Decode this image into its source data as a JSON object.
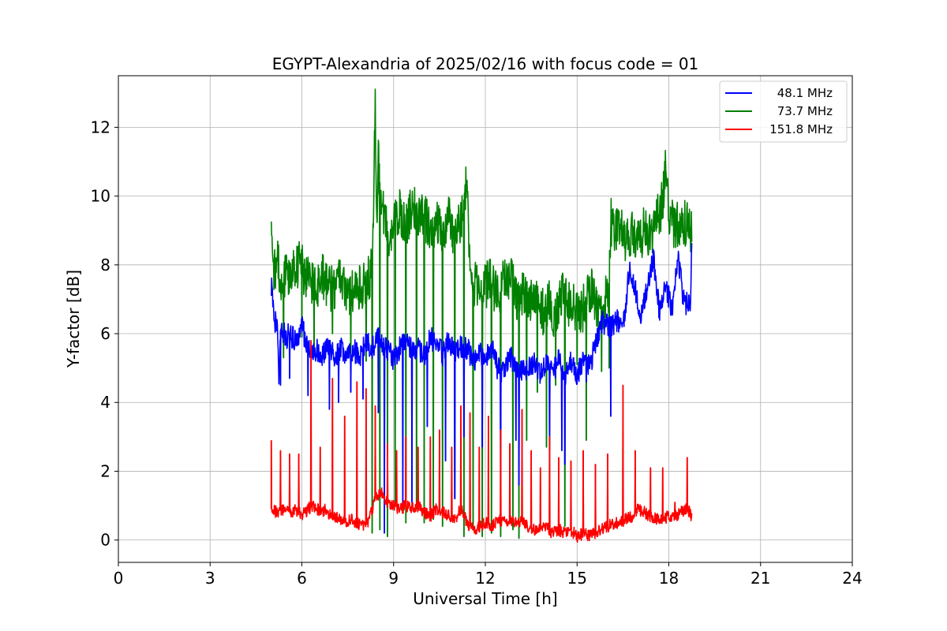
{
  "chart_data": {
    "type": "line",
    "title": "EGYPT-Alexandria of 2025/02/16 with focus code = 01",
    "xlabel": "Universal Time [h]",
    "ylabel": "Y-factor [dB]",
    "xlim": [
      0,
      24
    ],
    "ylim": [
      -0.65,
      13.5
    ],
    "xticks": [
      0,
      3,
      6,
      9,
      12,
      15,
      18,
      21,
      24
    ],
    "yticks": [
      0,
      2,
      4,
      6,
      8,
      10,
      12
    ],
    "grid": true,
    "legend_position": "top-right",
    "series": [
      {
        "name": "48.1 MHz",
        "color": "#0000ff",
        "x": [
          5.0,
          5.1,
          5.2,
          5.25,
          5.3,
          5.4,
          5.5,
          5.6,
          5.7,
          5.8,
          5.9,
          6.0,
          6.1,
          6.2,
          6.3,
          6.5,
          6.7,
          6.9,
          7.1,
          7.3,
          7.5,
          7.7,
          7.9,
          8.1,
          8.3,
          8.5,
          8.7,
          8.9,
          9.0,
          9.2,
          9.4,
          9.6,
          9.8,
          10.0,
          10.2,
          10.4,
          10.6,
          10.8,
          11.0,
          11.2,
          11.4,
          11.6,
          11.8,
          12.0,
          12.2,
          12.4,
          12.6,
          12.8,
          13.0,
          13.2,
          13.4,
          13.6,
          13.8,
          14.0,
          14.2,
          14.4,
          14.6,
          14.8,
          15.0,
          15.2,
          15.4,
          15.6,
          15.8,
          16.0,
          16.1,
          16.3,
          16.5,
          16.7,
          16.9,
          17.1,
          17.3,
          17.5,
          17.7,
          17.9,
          18.1,
          18.3,
          18.5,
          18.7,
          18.75
        ],
        "y": [
          7.4,
          6.4,
          6.2,
          4.6,
          6.1,
          6.0,
          5.9,
          6.0,
          5.9,
          5.8,
          6.0,
          6.2,
          5.9,
          5.7,
          5.6,
          5.5,
          5.4,
          5.6,
          5.3,
          5.6,
          5.3,
          5.5,
          5.4,
          5.8,
          5.6,
          5.9,
          5.6,
          5.5,
          5.2,
          5.6,
          5.8,
          5.5,
          5.6,
          5.3,
          5.9,
          5.7,
          5.4,
          5.8,
          5.5,
          5.6,
          5.6,
          5.2,
          5.4,
          5.3,
          5.6,
          5.0,
          4.9,
          5.4,
          5.0,
          4.9,
          5.0,
          5.1,
          4.8,
          5.1,
          4.9,
          5.2,
          4.8,
          5.2,
          4.7,
          5.3,
          5.0,
          5.7,
          6.3,
          6.3,
          6.2,
          6.4,
          6.1,
          7.8,
          7.3,
          6.5,
          7.3,
          8.2,
          6.6,
          7.4,
          6.7,
          8.2,
          6.9,
          6.8,
          8.3
        ]
      },
      {
        "name": "73.7 MHz",
        "color": "#008000",
        "x": [
          5.0,
          5.05,
          5.1,
          5.2,
          5.3,
          5.4,
          5.5,
          5.7,
          5.9,
          6.1,
          6.3,
          6.5,
          6.7,
          6.9,
          7.1,
          7.3,
          7.5,
          7.7,
          7.9,
          8.1,
          8.3,
          8.4,
          8.45,
          8.5,
          8.6,
          8.7,
          8.8,
          9.0,
          9.2,
          9.4,
          9.6,
          9.8,
          10.0,
          10.2,
          10.4,
          10.6,
          10.8,
          11.0,
          11.2,
          11.4,
          11.5,
          11.7,
          11.9,
          12.1,
          12.3,
          12.5,
          12.7,
          12.9,
          13.1,
          13.3,
          13.5,
          13.7,
          13.9,
          14.1,
          14.3,
          14.5,
          14.7,
          14.9,
          15.1,
          15.3,
          15.5,
          15.7,
          15.9,
          16.05,
          16.1,
          16.2,
          16.4,
          16.6,
          16.8,
          17.0,
          17.2,
          17.4,
          17.6,
          17.8,
          17.9,
          18.0,
          18.2,
          18.4,
          18.6,
          18.75
        ],
        "y": [
          9.6,
          8.8,
          7.7,
          8.2,
          7.6,
          7.4,
          7.9,
          7.7,
          8.0,
          7.8,
          7.6,
          7.4,
          7.7,
          7.3,
          7.4,
          7.6,
          7.1,
          7.4,
          7.3,
          7.6,
          7.8,
          12.8,
          9.0,
          11.0,
          9.8,
          9.5,
          8.8,
          9.3,
          9.6,
          9.0,
          9.8,
          9.4,
          9.5,
          8.9,
          9.3,
          9.0,
          9.4,
          8.8,
          9.2,
          10.6,
          7.6,
          7.4,
          7.1,
          7.6,
          7.3,
          7.2,
          7.8,
          7.4,
          6.9,
          7.3,
          6.9,
          7.0,
          6.6,
          6.9,
          6.4,
          7.1,
          6.9,
          6.8,
          6.6,
          6.9,
          7.3,
          6.5,
          6.9,
          7.3,
          9.3,
          9.0,
          9.2,
          8.6,
          8.9,
          8.7,
          9.0,
          8.8,
          9.3,
          9.8,
          11.2,
          9.6,
          9.1,
          9.3,
          9.2,
          9.0
        ]
      },
      {
        "name": "151.8 MHz",
        "color": "#ff0000",
        "x": [
          5.0,
          5.2,
          5.4,
          5.6,
          5.8,
          6.0,
          6.2,
          6.4,
          6.6,
          6.8,
          7.0,
          7.2,
          7.4,
          7.6,
          7.8,
          8.0,
          8.2,
          8.4,
          8.6,
          8.8,
          9.0,
          9.2,
          9.4,
          9.6,
          9.8,
          10.0,
          10.2,
          10.4,
          10.6,
          10.8,
          11.0,
          11.2,
          11.4,
          11.6,
          11.8,
          12.0,
          12.2,
          12.4,
          12.6,
          12.8,
          13.0,
          13.2,
          13.4,
          13.6,
          13.8,
          14.0,
          14.2,
          14.4,
          14.6,
          14.8,
          15.0,
          15.2,
          15.4,
          15.6,
          15.8,
          16.0,
          16.2,
          16.4,
          16.6,
          16.8,
          17.0,
          17.2,
          17.4,
          17.6,
          17.8,
          18.0,
          18.2,
          18.4,
          18.6,
          18.75
        ],
        "y": [
          0.9,
          0.8,
          0.9,
          0.8,
          0.9,
          0.7,
          0.9,
          1.0,
          0.8,
          0.9,
          0.6,
          0.7,
          0.5,
          0.6,
          0.5,
          0.4,
          0.6,
          1.2,
          1.4,
          1.1,
          1.0,
          0.9,
          1.0,
          0.9,
          1.0,
          0.8,
          0.7,
          0.9,
          0.8,
          0.7,
          0.6,
          0.9,
          0.5,
          0.3,
          0.4,
          0.5,
          0.4,
          0.6,
          0.5,
          0.6,
          0.5,
          0.6,
          0.4,
          0.3,
          0.3,
          0.4,
          0.2,
          0.3,
          0.2,
          0.3,
          0.1,
          0.2,
          0.1,
          0.2,
          0.3,
          0.4,
          0.5,
          0.5,
          0.6,
          0.7,
          0.9,
          0.8,
          0.7,
          0.6,
          0.6,
          0.7,
          0.7,
          0.8,
          0.9,
          0.7
        ]
      }
    ],
    "spikes": [
      {
        "series": "48.1 MHz",
        "x": [
          5.3,
          5.6,
          6.2,
          6.9,
          7.2,
          7.6,
          8.0,
          8.5,
          8.7,
          9.3,
          9.6,
          10.1,
          10.7,
          11.0,
          11.3,
          11.9,
          12.5,
          13.0,
          13.1,
          14.1,
          14.5,
          14.6,
          15.3,
          16.1
        ],
        "y": [
          4.5,
          4.7,
          4.2,
          3.8,
          4.0,
          4.3,
          4.1,
          3.7,
          0.2,
          0.9,
          1.1,
          3.3,
          2.3,
          1.2,
          3.0,
          2.7,
          1.5,
          2.9,
          1.6,
          2.6,
          2.6,
          2.2,
          4.6,
          3.6
        ]
      },
      {
        "series": "73.7 MHz",
        "x": [
          5.4,
          6.0,
          6.4,
          7.0,
          7.6,
          8.1,
          8.3,
          8.55,
          8.8,
          9.05,
          9.4,
          9.75,
          10.0,
          10.3,
          10.6,
          11.0,
          11.3,
          11.6,
          11.9,
          12.2,
          12.5,
          12.9,
          13.1,
          13.35,
          13.7,
          14.0,
          14.3,
          14.6,
          15.0,
          15.3,
          15.8,
          16.05
        ],
        "y": [
          5.3,
          5.9,
          5.5,
          6.0,
          4.8,
          5.2,
          0.2,
          0.3,
          0.1,
          1.0,
          0.5,
          0.9,
          0.5,
          0.6,
          0.4,
          1.2,
          0.1,
          0.3,
          0.1,
          0.2,
          0.1,
          0.3,
          0.05,
          2.9,
          4.3,
          2.7,
          4.5,
          0.4,
          5.1,
          2.9,
          4.9,
          5.0
        ]
      },
      {
        "series": "151.8 MHz",
        "x": [
          5.0,
          5.3,
          5.6,
          5.9,
          6.3,
          6.6,
          7.0,
          7.4,
          7.8,
          8.1,
          8.4,
          8.8,
          9.1,
          9.4,
          9.8,
          10.2,
          10.5,
          10.9,
          11.2,
          11.5,
          11.8,
          12.1,
          12.5,
          12.8,
          13.2,
          13.5,
          13.8,
          14.1,
          14.4,
          14.8,
          15.2,
          15.6,
          16.0,
          16.5,
          16.9,
          17.4,
          17.8,
          18.2,
          18.6
        ],
        "y": [
          2.9,
          2.6,
          2.5,
          2.5,
          5.8,
          2.7,
          4.7,
          3.6,
          4.6,
          4.4,
          3.9,
          2.8,
          2.6,
          3.0,
          2.7,
          3.0,
          3.2,
          2.7,
          3.9,
          3.7,
          2.7,
          3.6,
          3.2,
          2.8,
          3.8,
          2.6,
          2.1,
          3.0,
          2.4,
          2.3,
          2.6,
          2.2,
          2.5,
          4.5,
          2.6,
          2.1,
          2.1,
          1.1,
          2.4
        ]
      }
    ]
  }
}
